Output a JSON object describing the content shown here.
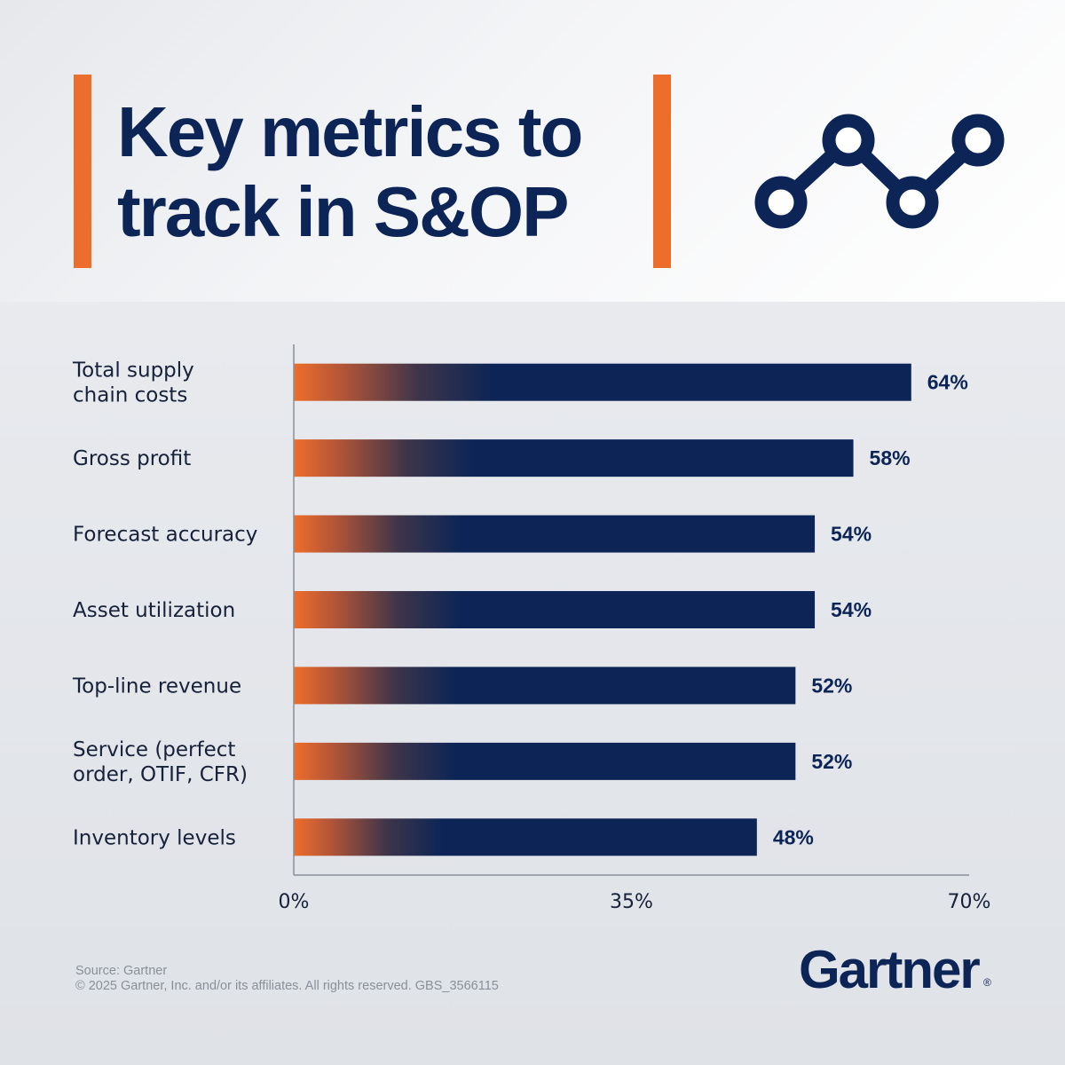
{
  "header": {
    "title_line1": "Key metrics to",
    "title_line2": "track in S&OP"
  },
  "icons": {
    "trend": "line-chart-icon"
  },
  "colors": {
    "navy": "#0d2556",
    "orange": "#ec6d2c"
  },
  "chart_data": {
    "type": "bar",
    "orientation": "horizontal",
    "title": "Key metrics to track in S&OP",
    "categories": [
      [
        "Total supply",
        "chain costs"
      ],
      [
        "Gross profit"
      ],
      [
        "Forecast accuracy"
      ],
      [
        "Asset utilization"
      ],
      [
        "Top-line revenue"
      ],
      [
        "Service (perfect",
        "order, OTIF, CFR)"
      ],
      [
        "Inventory levels"
      ]
    ],
    "values": [
      64,
      58,
      54,
      54,
      52,
      52,
      48
    ],
    "value_labels": [
      "64%",
      "58%",
      "54%",
      "54%",
      "52%",
      "52%",
      "48%"
    ],
    "xlim": [
      0,
      70
    ],
    "xticks": [
      0,
      35,
      70
    ],
    "xtick_labels": [
      "0%",
      "35%",
      "70%"
    ],
    "xlabel": "",
    "ylabel": "",
    "grid": false,
    "legend": "none"
  },
  "footer": {
    "source": "Source: Gartner",
    "copyright": "© 2025 Gartner, Inc. and/or its affiliates. All rights reserved. GBS_3566115",
    "brand": "Gartner",
    "brand_mark": "®"
  }
}
